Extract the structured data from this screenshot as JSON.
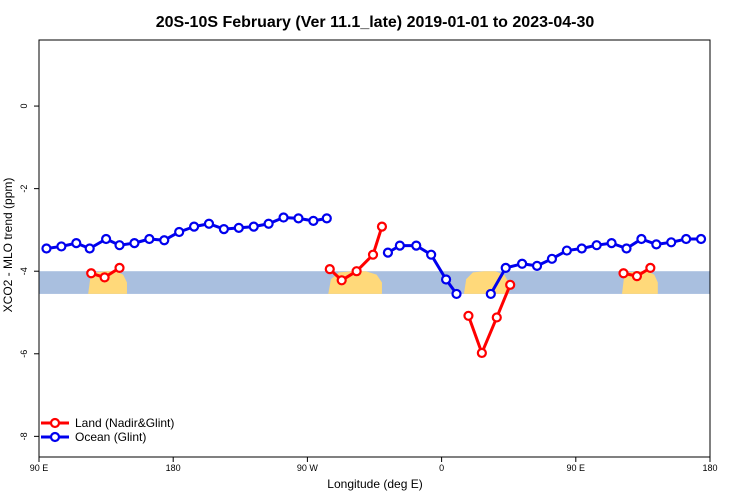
{
  "chart_data": {
    "type": "line",
    "title": "20S-10S February (Ver 11.1_late)   2019-01-01 to 2023-04-30",
    "xlabel": "Longitude (deg E)",
    "ylabel": "XCO2 - MLO trend (ppm)",
    "xlim": [
      90,
      540
    ],
    "ylim": [
      -8.5,
      1.6
    ],
    "xticks": [
      {
        "value": 90,
        "label": "90 E"
      },
      {
        "value": 180,
        "label": "180"
      },
      {
        "value": 270,
        "label": "90 W"
      },
      {
        "value": 360,
        "label": "0"
      },
      {
        "value": 450,
        "label": "90 E"
      },
      {
        "value": 540,
        "label": "180"
      }
    ],
    "yticks": [
      {
        "value": 0,
        "label": "0"
      },
      {
        "value": -2,
        "label": "-2"
      },
      {
        "value": -4,
        "label": "-4"
      },
      {
        "value": -6,
        "label": "-6"
      },
      {
        "value": -8,
        "label": "-8"
      }
    ],
    "map_band": {
      "y_top": -4.0,
      "y_bottom": -4.55,
      "ocean_color": "#a9bfdf",
      "land_color": "#ffd97a",
      "land_spans": [
        [
          123,
          149
        ],
        [
          284,
          320
        ],
        [
          375,
          405
        ],
        [
          481,
          505
        ]
      ]
    },
    "series": [
      {
        "name": "Land (Nadir&Glint)",
        "color": "#ff0000",
        "segments": [
          [
            [
              125,
              -4.05
            ],
            [
              134,
              -4.15
            ],
            [
              144,
              -3.92
            ]
          ],
          [
            [
              285,
              -3.95
            ],
            [
              293,
              -4.22
            ],
            [
              303,
              -4.0
            ],
            [
              314,
              -3.6
            ],
            [
              320,
              -2.92
            ]
          ],
          [
            [
              378,
              -5.08
            ],
            [
              387,
              -5.98
            ],
            [
              397,
              -5.12
            ],
            [
              406,
              -4.33
            ]
          ],
          [
            [
              482,
              -4.05
            ],
            [
              491,
              -4.12
            ],
            [
              500,
              -3.92
            ]
          ]
        ]
      },
      {
        "name": "Ocean (Glint)",
        "color": "#0000ee",
        "segments": [
          [
            [
              95,
              -3.45
            ],
            [
              105,
              -3.4
            ],
            [
              115,
              -3.32
            ],
            [
              124,
              -3.45
            ],
            [
              135,
              -3.22
            ],
            [
              144,
              -3.37
            ],
            [
              154,
              -3.32
            ],
            [
              164,
              -3.22
            ],
            [
              174,
              -3.25
            ],
            [
              184,
              -3.05
            ],
            [
              194,
              -2.92
            ],
            [
              204,
              -2.85
            ],
            [
              214,
              -2.98
            ],
            [
              224,
              -2.95
            ],
            [
              234,
              -2.92
            ],
            [
              244,
              -2.85
            ],
            [
              254,
              -2.7
            ],
            [
              264,
              -2.72
            ],
            [
              274,
              -2.78
            ],
            [
              283,
              -2.72
            ]
          ],
          [
            [
              324,
              -3.55
            ],
            [
              332,
              -3.38
            ],
            [
              343,
              -3.38
            ],
            [
              353,
              -3.6
            ],
            [
              363,
              -4.2
            ],
            [
              370,
              -4.55
            ]
          ],
          [
            [
              393,
              -4.55
            ],
            [
              403,
              -3.92
            ],
            [
              414,
              -3.82
            ],
            [
              424,
              -3.87
            ],
            [
              434,
              -3.7
            ],
            [
              444,
              -3.5
            ],
            [
              454,
              -3.45
            ],
            [
              464,
              -3.37
            ],
            [
              474,
              -3.32
            ],
            [
              484,
              -3.45
            ],
            [
              494,
              -3.22
            ],
            [
              504,
              -3.35
            ],
            [
              514,
              -3.3
            ],
            [
              524,
              -3.22
            ],
            [
              534,
              -3.22
            ]
          ]
        ]
      }
    ],
    "legend": {
      "position": "bottom-left",
      "entries": [
        {
          "label": "Land (Nadir&Glint)",
          "color": "#ff0000"
        },
        {
          "label": "Ocean (Glint)",
          "color": "#0000ee"
        }
      ]
    },
    "grid": false
  }
}
